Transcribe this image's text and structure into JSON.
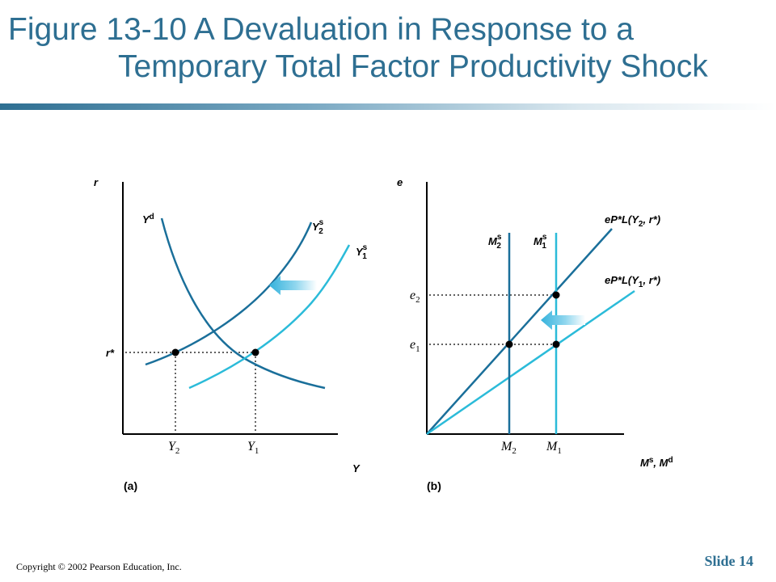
{
  "slide": {
    "title_line1": "Figure 13-10  A Devaluation in Response to a",
    "title_line2": "Temporary Total Factor Productivity Shock",
    "copyright": "Copyright © 2002 Pearson Education, Inc.",
    "slide_label": "Slide 14"
  },
  "colors": {
    "title": "#2e6f92",
    "dark_curve": "#1a6f9a",
    "light_curve": "#2bbbd9",
    "arrow": "#35b2dc"
  },
  "panel_a": {
    "label": "(a)",
    "y_axis": "r",
    "x_axis": "Y",
    "demand_curve": "Y",
    "demand_sup": "d",
    "supply2": "Y",
    "supply2_sub": "2",
    "supply2_sup": "s",
    "supply1": "Y",
    "supply1_sub": "1",
    "supply1_sup": "s",
    "r_star": "r*",
    "y2_tick": "Y",
    "y2_sub": "2",
    "y1_tick": "Y",
    "y1_sub": "1"
  },
  "panel_b": {
    "label": "(b)",
    "y_axis": "e",
    "x_axis": "M",
    "x_axis_sup": "s",
    "x_axis_sep": ", M",
    "x_axis_sup2": "d",
    "m2s": "M",
    "m2s_sub": "2",
    "m2s_sup": "s",
    "m1s": "M",
    "m1s_sub": "1",
    "m1s_sup": "s",
    "line_y2_pre": "eP*L(Y",
    "line_y2_sub": "2",
    "line_y2_post": ", r*)",
    "line_y1_pre": "eP*L(Y",
    "line_y1_sub": "1",
    "line_y1_post": ", r*)",
    "e2": "e",
    "e2_sub": "2",
    "e1": "e",
    "e1_sub": "1",
    "m2_tick": "M",
    "m2_tick_sub": "2",
    "m1_tick": "M",
    "m1_tick_sub": "1"
  }
}
